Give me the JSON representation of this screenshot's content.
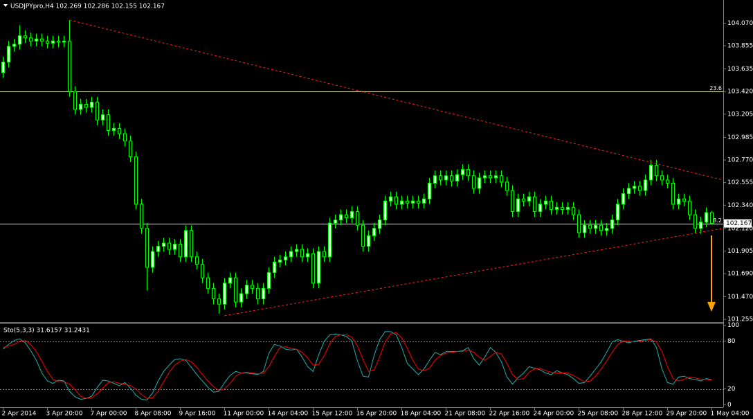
{
  "chart_data": [
    {
      "type": "candlestick",
      "title": "USDJPYpro,H4  102.269 102.286 102.155 102.167",
      "categories": [
        "2 Apr 2014",
        null,
        null,
        null,
        null,
        null,
        null,
        null,
        "3 Apr 20:00",
        null,
        null,
        null,
        null,
        null,
        null,
        null,
        "7 Apr 00:00",
        null,
        null,
        null,
        null,
        null,
        null,
        null,
        "8 Apr 08:00",
        null,
        null,
        null,
        null,
        null,
        null,
        null,
        "9 Apr 16:00",
        null,
        null,
        null,
        null,
        null,
        null,
        null,
        "11 Apr 00:00",
        null,
        null,
        null,
        null,
        null,
        null,
        null,
        "14 Apr 04:00",
        null,
        null,
        null,
        null,
        null,
        null,
        null,
        "15 Apr 12:00",
        null,
        null,
        null,
        null,
        null,
        null,
        null,
        "16 Apr 20:00",
        null,
        null,
        null,
        null,
        null,
        null,
        null,
        "18 Apr 04:00",
        null,
        null,
        null,
        null,
        null,
        null,
        null,
        "21 Apr 08:00",
        null,
        null,
        null,
        null,
        null,
        null,
        null,
        "22 Apr 16:00",
        null,
        null,
        null,
        null,
        null,
        null,
        null,
        "24 Apr 00:00",
        null,
        null,
        null,
        null,
        null,
        null,
        null,
        "25 Apr 08:00",
        null,
        null,
        null,
        null,
        null,
        null,
        null,
        "28 Apr 12:00",
        null,
        null,
        null,
        null,
        null,
        null,
        null,
        "29 Apr 20:00",
        null,
        null,
        null,
        null,
        null,
        null,
        null,
        "1 May 04:00"
      ],
      "open": [
        103.6,
        103.7,
        103.85,
        103.87,
        103.95,
        103.93,
        103.9,
        103.92,
        103.9,
        103.88,
        103.9,
        103.89,
        103.9,
        103.42,
        103.25,
        103.3,
        103.27,
        103.32,
        103.15,
        103.2,
        103.05,
        103.07,
        103.02,
        102.95,
        102.8,
        102.35,
        102.12,
        101.75,
        101.9,
        101.95,
        101.98,
        101.92,
        101.97,
        101.85,
        102.1,
        101.85,
        101.78,
        101.65,
        101.55,
        101.45,
        101.4,
        101.6,
        101.65,
        101.42,
        101.5,
        101.58,
        101.55,
        101.45,
        101.55,
        101.7,
        101.8,
        101.82,
        101.85,
        101.9,
        101.92,
        101.85,
        101.88,
        101.6,
        101.9,
        101.85,
        102.17,
        102.2,
        102.25,
        102.22,
        102.28,
        102.15,
        101.95,
        102.05,
        102.12,
        102.2,
        102.38,
        102.42,
        102.35,
        102.38,
        102.36,
        102.38,
        102.36,
        102.4,
        102.55,
        102.62,
        102.58,
        102.62,
        102.57,
        102.63,
        102.68,
        102.62,
        102.5,
        102.6,
        102.62,
        102.6,
        102.62,
        102.56,
        102.48,
        102.28,
        102.4,
        102.38,
        102.42,
        102.28,
        102.35,
        102.38,
        102.3,
        102.32,
        102.3,
        102.32,
        102.25,
        102.08,
        102.15,
        102.12,
        102.15,
        102.1,
        102.12,
        102.2,
        102.35,
        102.45,
        102.5,
        102.52,
        102.48,
        102.58,
        102.72,
        102.62,
        102.58,
        102.55,
        102.35,
        102.4,
        102.38,
        102.25,
        102.12,
        102.18,
        102.269
      ],
      "high": [
        103.75,
        103.9,
        103.92,
        104.05,
        104.0,
        103.98,
        103.97,
        103.97,
        103.95,
        103.95,
        103.95,
        103.95,
        104.1,
        103.47,
        103.35,
        103.35,
        103.37,
        103.37,
        103.25,
        103.25,
        103.12,
        103.12,
        103.07,
        103.0,
        102.85,
        102.4,
        102.17,
        101.95,
        102.0,
        102.03,
        102.03,
        102.02,
        102.02,
        102.15,
        102.15,
        101.9,
        101.83,
        101.7,
        101.6,
        101.5,
        101.65,
        101.7,
        101.7,
        101.55,
        101.63,
        101.63,
        101.6,
        101.6,
        101.75,
        101.85,
        101.87,
        101.9,
        101.95,
        101.97,
        101.97,
        101.93,
        101.93,
        101.95,
        101.95,
        102.22,
        102.25,
        102.3,
        102.3,
        102.33,
        102.33,
        102.2,
        102.1,
        102.17,
        102.25,
        102.43,
        102.47,
        102.47,
        102.43,
        102.43,
        102.43,
        102.43,
        102.45,
        102.6,
        102.67,
        102.67,
        102.67,
        102.67,
        102.68,
        102.73,
        102.73,
        102.67,
        102.65,
        102.67,
        102.67,
        102.67,
        102.67,
        102.61,
        102.53,
        102.45,
        102.45,
        102.47,
        102.47,
        102.4,
        102.43,
        102.43,
        102.37,
        102.37,
        102.37,
        102.37,
        102.3,
        102.2,
        102.2,
        102.2,
        102.2,
        102.17,
        102.25,
        102.4,
        102.5,
        102.55,
        102.57,
        102.57,
        102.63,
        102.77,
        102.77,
        102.67,
        102.63,
        102.6,
        102.45,
        102.45,
        102.43,
        102.3,
        102.23,
        102.32,
        102.286
      ],
      "low": [
        103.55,
        103.65,
        103.8,
        103.82,
        103.88,
        103.85,
        103.85,
        103.85,
        103.83,
        103.83,
        103.84,
        103.84,
        103.37,
        103.2,
        103.2,
        103.22,
        103.22,
        103.1,
        103.1,
        103.0,
        103.0,
        102.97,
        102.9,
        102.75,
        102.3,
        102.07,
        101.53,
        101.7,
        101.85,
        101.9,
        101.87,
        101.87,
        101.8,
        101.8,
        101.8,
        101.73,
        101.6,
        101.5,
        101.4,
        101.31,
        101.35,
        101.55,
        101.37,
        101.37,
        101.45,
        101.5,
        101.4,
        101.4,
        101.5,
        101.65,
        101.75,
        101.77,
        101.8,
        101.85,
        101.8,
        101.8,
        101.55,
        101.55,
        101.8,
        101.8,
        102.12,
        102.15,
        102.17,
        102.17,
        102.1,
        101.9,
        101.9,
        102.0,
        102.07,
        102.15,
        102.33,
        102.3,
        102.3,
        102.31,
        102.31,
        102.31,
        102.31,
        102.35,
        102.5,
        102.53,
        102.53,
        102.52,
        102.52,
        102.58,
        102.57,
        102.45,
        102.45,
        102.55,
        102.55,
        102.55,
        102.51,
        102.43,
        102.23,
        102.23,
        102.33,
        102.33,
        102.23,
        102.23,
        102.3,
        102.25,
        102.25,
        102.25,
        102.25,
        102.2,
        102.03,
        102.03,
        102.07,
        102.07,
        102.05,
        102.05,
        102.07,
        102.15,
        102.3,
        102.4,
        102.45,
        102.43,
        102.43,
        102.53,
        102.57,
        102.53,
        102.5,
        102.3,
        102.3,
        102.33,
        102.2,
        102.07,
        102.07,
        102.13,
        102.155
      ],
      "close": [
        103.7,
        103.85,
        103.87,
        103.95,
        103.93,
        103.9,
        103.92,
        103.9,
        103.88,
        103.9,
        103.89,
        103.9,
        103.42,
        103.25,
        103.3,
        103.27,
        103.32,
        103.15,
        103.2,
        103.05,
        103.07,
        103.02,
        102.95,
        102.8,
        102.35,
        102.12,
        101.75,
        101.9,
        101.95,
        101.98,
        101.92,
        101.97,
        101.85,
        102.1,
        101.85,
        101.78,
        101.65,
        101.55,
        101.45,
        101.4,
        101.6,
        101.65,
        101.42,
        101.5,
        101.58,
        101.55,
        101.45,
        101.55,
        101.7,
        101.8,
        101.82,
        101.85,
        101.9,
        101.92,
        101.85,
        101.88,
        101.6,
        101.9,
        101.85,
        102.17,
        102.2,
        102.25,
        102.22,
        102.28,
        102.15,
        101.95,
        102.05,
        102.12,
        102.2,
        102.38,
        102.42,
        102.35,
        102.38,
        102.36,
        102.38,
        102.36,
        102.4,
        102.55,
        102.62,
        102.58,
        102.62,
        102.57,
        102.63,
        102.68,
        102.62,
        102.5,
        102.6,
        102.62,
        102.6,
        102.62,
        102.56,
        102.48,
        102.28,
        102.4,
        102.38,
        102.42,
        102.28,
        102.35,
        102.38,
        102.3,
        102.32,
        102.3,
        102.32,
        102.25,
        102.08,
        102.15,
        102.12,
        102.15,
        102.1,
        102.12,
        102.2,
        102.35,
        102.45,
        102.5,
        102.52,
        102.48,
        102.58,
        102.72,
        102.62,
        102.58,
        102.55,
        102.35,
        102.4,
        102.38,
        102.25,
        102.12,
        102.18,
        102.27,
        102.167
      ],
      "bull_color": "#ffffff",
      "bear_color": "#000000",
      "wick_color": "#00ff00",
      "ylim": [
        101.23,
        104.29
      ],
      "yticks": [
        {
          "value": 104.07,
          "label": "104.070"
        },
        103.855,
        103.635,
        {
          "value": 103.42,
          "label": "103.420"
        },
        103.205,
        102.985,
        {
          "value": 102.77,
          "label": "102.770"
        },
        102.555,
        {
          "value": 102.34,
          "label": "102.340"
        },
        {
          "value": 102.12,
          "label": "102.120"
        },
        101.905,
        {
          "value": 101.69,
          "label": "101.690"
        },
        {
          "value": 101.47,
          "label": "101.470"
        },
        101.255
      ],
      "levels": [
        {
          "value": 103.42,
          "label": "23.6"
        },
        {
          "value": 102.165,
          "label": "8.2"
        }
      ],
      "level_color": "#e8e89a",
      "trendlines": [
        {
          "x": [
            12,
            130
          ],
          "y": [
            104.1,
            102.58
          ]
        },
        {
          "x": [
            40,
            130
          ],
          "y": [
            101.29,
            102.12
          ]
        }
      ],
      "trendline_color": "#ff2020",
      "last_price": {
        "value": 102.167,
        "label": "102.167"
      }
    },
    {
      "type": "line",
      "title": "Sto(5,3,3) 31.6157 31.2431",
      "series": [
        {
          "color": "#20b2aa",
          "values": [
            70,
            76,
            81,
            83,
            78,
            68,
            56,
            40,
            30,
            27,
            31,
            30,
            17,
            10,
            7,
            8,
            11,
            22,
            31,
            30,
            27,
            24,
            28,
            21,
            12,
            7,
            6,
            15,
            30,
            42,
            50,
            57,
            58,
            56,
            47,
            38,
            30,
            22,
            16,
            17,
            28,
            37,
            42,
            40,
            40,
            39,
            38,
            42,
            65,
            76,
            74,
            70,
            69,
            70,
            60,
            48,
            42,
            63,
            80,
            88,
            89,
            88,
            86,
            80,
            55,
            36,
            35,
            62,
            82,
            92,
            92,
            88,
            72,
            52,
            45,
            38,
            45,
            56,
            66,
            63,
            67,
            67,
            67,
            68,
            72,
            58,
            50,
            60,
            72,
            66,
            54,
            35,
            26,
            34,
            40,
            48,
            46,
            44,
            40,
            38,
            43,
            40,
            38,
            33,
            27,
            28,
            36,
            45,
            54,
            66,
            79,
            82,
            80,
            78,
            80,
            81,
            82,
            83,
            72,
            45,
            28,
            26,
            35,
            36,
            33,
            32,
            30,
            33,
            31.6157
          ]
        },
        {
          "color": "#ff0000",
          "values": [
            72,
            74,
            76,
            80,
            81,
            76,
            67,
            55,
            42,
            32,
            29,
            29,
            26,
            19,
            11,
            8,
            9,
            14,
            21,
            28,
            29,
            27,
            26,
            24,
            20,
            13,
            8,
            9,
            17,
            29,
            41,
            50,
            55,
            57,
            54,
            47,
            38,
            30,
            23,
            18,
            20,
            27,
            36,
            40,
            41,
            40,
            39,
            40,
            48,
            61,
            72,
            73,
            71,
            70,
            66,
            59,
            50,
            51,
            62,
            77,
            86,
            88,
            88,
            85,
            74,
            57,
            42,
            44,
            60,
            79,
            89,
            91,
            84,
            71,
            56,
            45,
            43,
            46,
            56,
            62,
            65,
            66,
            67,
            67,
            69,
            66,
            60,
            56,
            61,
            66,
            64,
            52,
            38,
            32,
            33,
            41,
            45,
            46,
            43,
            41,
            40,
            40,
            40,
            37,
            33,
            29,
            30,
            36,
            45,
            55,
            66,
            76,
            80,
            80,
            79,
            80,
            81,
            82,
            79,
            67,
            48,
            33,
            30,
            32,
            35,
            34,
            32,
            32,
            31.2431
          ]
        }
      ],
      "ylim": [
        -3,
        101.5
      ],
      "yticks": [
        100,
        80,
        20,
        0
      ],
      "levels": [
        80,
        20
      ],
      "level_color": "#808080"
    }
  ]
}
